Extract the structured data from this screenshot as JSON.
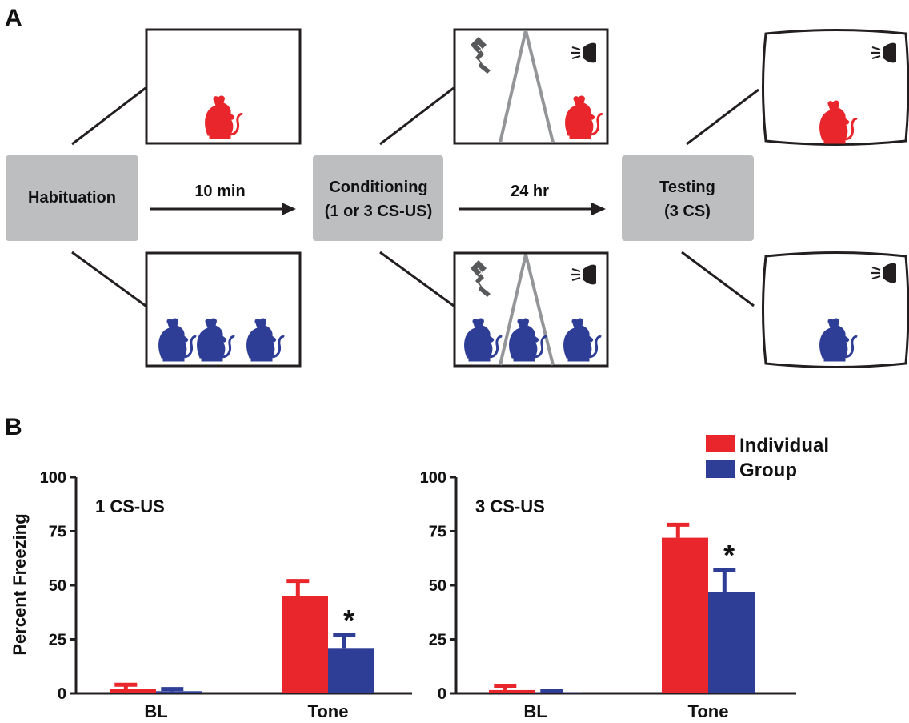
{
  "panel_a": {
    "label": "A",
    "stages": {
      "habituation": "Habituation",
      "conditioning_line1": "Conditioning",
      "conditioning_line2": "(1 or 3 CS-US)",
      "testing_line1": "Testing",
      "testing_line2": "(3 CS)"
    },
    "arrows": {
      "first": "10 min",
      "second": "24 hr"
    },
    "colors": {
      "individual": "#e8262b",
      "group": "#2e3d96",
      "stage_box": "#bcbec0",
      "grid_bar": "#939598",
      "shock_icon": "#58595b"
    },
    "icons": [
      "rat-icon",
      "shock-electrode-icon",
      "speaker-icon"
    ]
  },
  "panel_b": {
    "label": "B",
    "ylabel": "Percent Freezing",
    "legend": {
      "individual": "Individual",
      "group": "Group"
    }
  },
  "chart_data": [
    {
      "type": "bar",
      "annotation": "1 CS-US",
      "categories": [
        "BL",
        "Tone"
      ],
      "ylabel": "Percent Freezing",
      "ylim": [
        0,
        100
      ],
      "yticks": [
        "0",
        "25",
        "50",
        "75",
        "100"
      ],
      "series": [
        {
          "name": "Individual",
          "color": "#e8262b",
          "values": [
            2,
            45
          ],
          "errors": [
            2,
            7
          ]
        },
        {
          "name": "Group",
          "color": "#2e3d96",
          "values": [
            1,
            21
          ],
          "errors": [
            1,
            6
          ]
        }
      ],
      "significance": [
        {
          "category": "Tone",
          "series": "Group",
          "mark": "*"
        }
      ]
    },
    {
      "type": "bar",
      "annotation": "3 CS-US",
      "categories": [
        "BL",
        "Tone"
      ],
      "ylabel": "",
      "ylim": [
        0,
        100
      ],
      "yticks": [
        "0",
        "25",
        "50",
        "75",
        "100"
      ],
      "series": [
        {
          "name": "Individual",
          "color": "#e8262b",
          "values": [
            1.5,
            72
          ],
          "errors": [
            2,
            6
          ]
        },
        {
          "name": "Group",
          "color": "#2e3d96",
          "values": [
            0.5,
            47
          ],
          "errors": [
            0.5,
            10
          ]
        }
      ],
      "significance": [
        {
          "category": "Tone",
          "series": "Group",
          "mark": "*"
        }
      ]
    }
  ]
}
